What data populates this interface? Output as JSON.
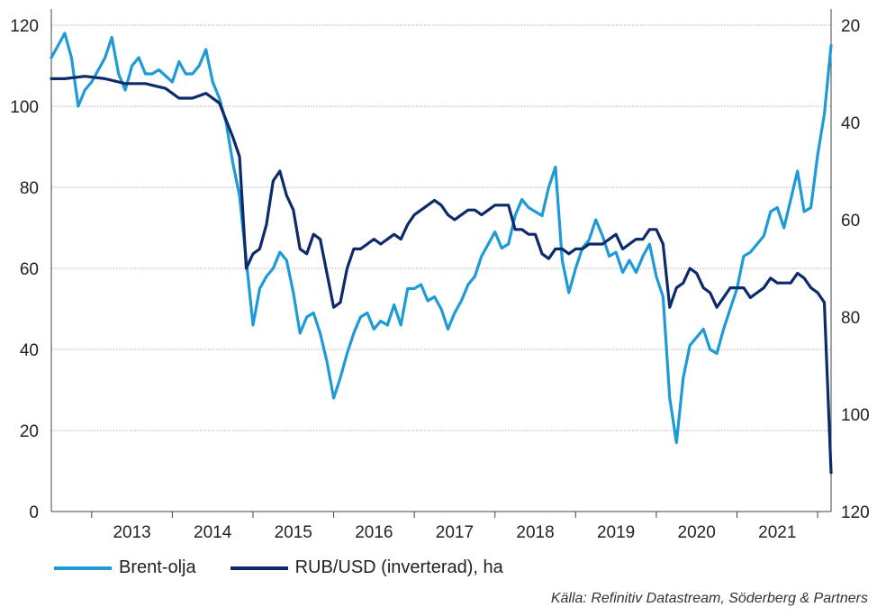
{
  "chart_data": {
    "type": "line",
    "x_range": [
      "2012-07",
      "2022-03"
    ],
    "x_tick_labels": [
      "2013",
      "2014",
      "2015",
      "2016",
      "2017",
      "2018",
      "2019",
      "2020",
      "2021"
    ],
    "left_axis": {
      "ticks": [
        0,
        20,
        40,
        60,
        80,
        100,
        120
      ],
      "ylim": [
        0,
        120
      ]
    },
    "right_axis": {
      "ticks": [
        20,
        40,
        60,
        80,
        100,
        120
      ],
      "ylim": [
        20,
        120
      ],
      "inverted": true
    },
    "grid": "horizontal",
    "legend_position": "bottom-left",
    "series": [
      {
        "name": "Brent-olja",
        "axis": "left",
        "color": "#1e9bd7",
        "points": [
          [
            "2012-07",
            112
          ],
          [
            "2012-08",
            115
          ],
          [
            "2012-09",
            118
          ],
          [
            "2012-10",
            112
          ],
          [
            "2012-11",
            100
          ],
          [
            "2012-12",
            104
          ],
          [
            "2013-01",
            106
          ],
          [
            "2013-02",
            109
          ],
          [
            "2013-03",
            112
          ],
          [
            "2013-04",
            117
          ],
          [
            "2013-05",
            108
          ],
          [
            "2013-06",
            104
          ],
          [
            "2013-07",
            110
          ],
          [
            "2013-08",
            112
          ],
          [
            "2013-09",
            108
          ],
          [
            "2013-10",
            108
          ],
          [
            "2013-11",
            109
          ],
          [
            "2014-01",
            106
          ],
          [
            "2014-02",
            111
          ],
          [
            "2014-03",
            108
          ],
          [
            "2014-04",
            108
          ],
          [
            "2014-05",
            110
          ],
          [
            "2014-06",
            114
          ],
          [
            "2014-07",
            106
          ],
          [
            "2014-08",
            102
          ],
          [
            "2014-09",
            96
          ],
          [
            "2014-10",
            86
          ],
          [
            "2014-11",
            78
          ],
          [
            "2014-12",
            62
          ],
          [
            "2015-01",
            46
          ],
          [
            "2015-02",
            55
          ],
          [
            "2015-03",
            58
          ],
          [
            "2015-04",
            60
          ],
          [
            "2015-05",
            64
          ],
          [
            "2015-06",
            62
          ],
          [
            "2015-07",
            54
          ],
          [
            "2015-08",
            44
          ],
          [
            "2015-09",
            48
          ],
          [
            "2015-10",
            49
          ],
          [
            "2015-11",
            44
          ],
          [
            "2015-12",
            37
          ],
          [
            "2016-01",
            28
          ],
          [
            "2016-02",
            33
          ],
          [
            "2016-03",
            39
          ],
          [
            "2016-04",
            44
          ],
          [
            "2016-05",
            48
          ],
          [
            "2016-06",
            49
          ],
          [
            "2016-07",
            45
          ],
          [
            "2016-08",
            47
          ],
          [
            "2016-09",
            46
          ],
          [
            "2016-10",
            51
          ],
          [
            "2016-11",
            46
          ],
          [
            "2016-12",
            55
          ],
          [
            "2017-01",
            55
          ],
          [
            "2017-02",
            56
          ],
          [
            "2017-03",
            52
          ],
          [
            "2017-04",
            53
          ],
          [
            "2017-05",
            50
          ],
          [
            "2017-06",
            45
          ],
          [
            "2017-07",
            49
          ],
          [
            "2017-08",
            52
          ],
          [
            "2017-09",
            56
          ],
          [
            "2017-10",
            58
          ],
          [
            "2017-11",
            63
          ],
          [
            "2017-12",
            66
          ],
          [
            "2018-01",
            69
          ],
          [
            "2018-02",
            65
          ],
          [
            "2018-03",
            66
          ],
          [
            "2018-04",
            73
          ],
          [
            "2018-05",
            77
          ],
          [
            "2018-06",
            75
          ],
          [
            "2018-07",
            74
          ],
          [
            "2018-08",
            73
          ],
          [
            "2018-09",
            80
          ],
          [
            "2018-10",
            85
          ],
          [
            "2018-11",
            62
          ],
          [
            "2018-12",
            54
          ],
          [
            "2019-01",
            60
          ],
          [
            "2019-02",
            65
          ],
          [
            "2019-03",
            67
          ],
          [
            "2019-04",
            72
          ],
          [
            "2019-05",
            68
          ],
          [
            "2019-06",
            63
          ],
          [
            "2019-07",
            64
          ],
          [
            "2019-08",
            59
          ],
          [
            "2019-09",
            62
          ],
          [
            "2019-10",
            59
          ],
          [
            "2019-11",
            63
          ],
          [
            "2019-12",
            66
          ],
          [
            "2020-01",
            58
          ],
          [
            "2020-02",
            53
          ],
          [
            "2020-03",
            28
          ],
          [
            "2020-04",
            17
          ],
          [
            "2020-05",
            33
          ],
          [
            "2020-06",
            41
          ],
          [
            "2020-07",
            43
          ],
          [
            "2020-08",
            45
          ],
          [
            "2020-09",
            40
          ],
          [
            "2020-10",
            39
          ],
          [
            "2020-11",
            45
          ],
          [
            "2020-12",
            50
          ],
          [
            "2021-01",
            55
          ],
          [
            "2021-02",
            63
          ],
          [
            "2021-03",
            64
          ],
          [
            "2021-04",
            66
          ],
          [
            "2021-05",
            68
          ],
          [
            "2021-06",
            74
          ],
          [
            "2021-07",
            75
          ],
          [
            "2021-08",
            70
          ],
          [
            "2021-09",
            77
          ],
          [
            "2021-10",
            84
          ],
          [
            "2021-11",
            74
          ],
          [
            "2021-12",
            75
          ],
          [
            "2022-01",
            88
          ],
          [
            "2022-02",
            98
          ],
          [
            "2022-03",
            115
          ]
        ]
      },
      {
        "name": "RUB/USD (inverterad), ha",
        "axis": "right",
        "color": "#0d2b6b",
        "points": [
          [
            "2012-07",
            31
          ],
          [
            "2012-09",
            31
          ],
          [
            "2012-12",
            30.5
          ],
          [
            "2013-03",
            31
          ],
          [
            "2013-06",
            32
          ],
          [
            "2013-09",
            32
          ],
          [
            "2013-12",
            33
          ],
          [
            "2014-02",
            35
          ],
          [
            "2014-04",
            35
          ],
          [
            "2014-06",
            34
          ],
          [
            "2014-08",
            36
          ],
          [
            "2014-10",
            43
          ],
          [
            "2014-11",
            47
          ],
          [
            "2014-12",
            70
          ],
          [
            "2015-01",
            67
          ],
          [
            "2015-02",
            66
          ],
          [
            "2015-03",
            61
          ],
          [
            "2015-04",
            52
          ],
          [
            "2015-05",
            50
          ],
          [
            "2015-06",
            55
          ],
          [
            "2015-07",
            58
          ],
          [
            "2015-08",
            66
          ],
          [
            "2015-09",
            67
          ],
          [
            "2015-10",
            63
          ],
          [
            "2015-11",
            64
          ],
          [
            "2015-12",
            71
          ],
          [
            "2016-01",
            78
          ],
          [
            "2016-02",
            77
          ],
          [
            "2016-03",
            70
          ],
          [
            "2016-04",
            66
          ],
          [
            "2016-05",
            66
          ],
          [
            "2016-06",
            65
          ],
          [
            "2016-07",
            64
          ],
          [
            "2016-08",
            65
          ],
          [
            "2016-09",
            64
          ],
          [
            "2016-10",
            63
          ],
          [
            "2016-11",
            64
          ],
          [
            "2016-12",
            61
          ],
          [
            "2017-01",
            59
          ],
          [
            "2017-02",
            58
          ],
          [
            "2017-03",
            57
          ],
          [
            "2017-04",
            56
          ],
          [
            "2017-05",
            57
          ],
          [
            "2017-06",
            59
          ],
          [
            "2017-07",
            60
          ],
          [
            "2017-08",
            59
          ],
          [
            "2017-09",
            58
          ],
          [
            "2017-10",
            58
          ],
          [
            "2017-11",
            59
          ],
          [
            "2017-12",
            58
          ],
          [
            "2018-01",
            57
          ],
          [
            "2018-02",
            57
          ],
          [
            "2018-03",
            57
          ],
          [
            "2018-04",
            62
          ],
          [
            "2018-05",
            62
          ],
          [
            "2018-06",
            63
          ],
          [
            "2018-07",
            63
          ],
          [
            "2018-08",
            67
          ],
          [
            "2018-09",
            68
          ],
          [
            "2018-10",
            66
          ],
          [
            "2018-11",
            66
          ],
          [
            "2018-12",
            67
          ],
          [
            "2019-01",
            66
          ],
          [
            "2019-02",
            66
          ],
          [
            "2019-03",
            65
          ],
          [
            "2019-04",
            65
          ],
          [
            "2019-05",
            65
          ],
          [
            "2019-06",
            64
          ],
          [
            "2019-07",
            63
          ],
          [
            "2019-08",
            66
          ],
          [
            "2019-09",
            65
          ],
          [
            "2019-10",
            64
          ],
          [
            "2019-11",
            64
          ],
          [
            "2019-12",
            62
          ],
          [
            "2020-01",
            62
          ],
          [
            "2020-02",
            65
          ],
          [
            "2020-03",
            78
          ],
          [
            "2020-04",
            74
          ],
          [
            "2020-05",
            73
          ],
          [
            "2020-06",
            70
          ],
          [
            "2020-07",
            71
          ],
          [
            "2020-08",
            74
          ],
          [
            "2020-09",
            75
          ],
          [
            "2020-10",
            78
          ],
          [
            "2020-11",
            76
          ],
          [
            "2020-12",
            74
          ],
          [
            "2021-01",
            74
          ],
          [
            "2021-02",
            74
          ],
          [
            "2021-03",
            76
          ],
          [
            "2021-04",
            75
          ],
          [
            "2021-05",
            74
          ],
          [
            "2021-06",
            72
          ],
          [
            "2021-07",
            73
          ],
          [
            "2021-08",
            73
          ],
          [
            "2021-09",
            73
          ],
          [
            "2021-10",
            71
          ],
          [
            "2021-11",
            72
          ],
          [
            "2021-12",
            74
          ],
          [
            "2022-01",
            75
          ],
          [
            "2022-02",
            77
          ],
          [
            "2022-03",
            112
          ]
        ]
      }
    ]
  },
  "source_text": "Källa: Refinitiv Datastream, Söderberg & Partners"
}
